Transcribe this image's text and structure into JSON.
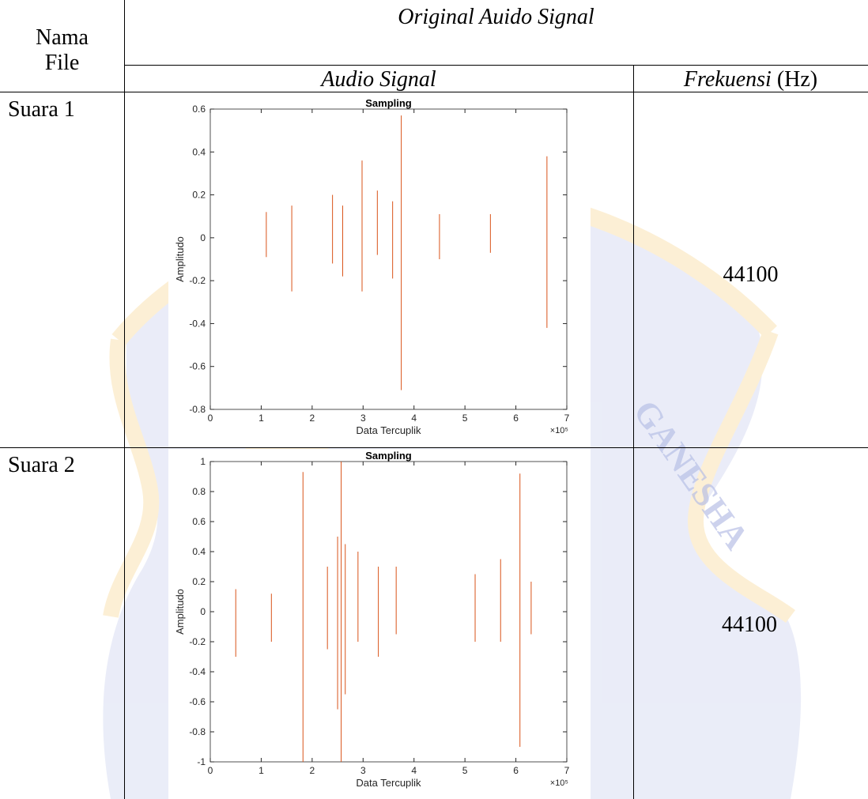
{
  "table": {
    "header": {
      "name_col": "Nama File",
      "group": "Original Auido Signal",
      "signal_col": "Audio Signal",
      "freq_col_italic": "Frekuensi",
      "freq_col_unit": "(Hz)"
    },
    "rows": [
      {
        "file": "Suara 1",
        "frequency": "44100"
      },
      {
        "file": "Suara 2",
        "frequency": "44100"
      }
    ]
  },
  "watermark": {
    "text": "GANESHA",
    "colors": {
      "blue": "#d9def3",
      "gold": "#fbe3b4"
    }
  },
  "chart_data": [
    {
      "type": "line",
      "title": "Sampling",
      "xlabel": "Data Tercuplik",
      "ylabel": "Amplitudo",
      "xlim": [
        0,
        7
      ],
      "ylim": [
        -0.8,
        0.6
      ],
      "x_multiplier": "×10⁵",
      "x_ticks": [
        "0",
        "1",
        "2",
        "3",
        "4",
        "5",
        "6",
        "7"
      ],
      "y_ticks": [
        "-0.8",
        "-0.6",
        "-0.4",
        "-0.2",
        "0",
        "0.2",
        "0.4",
        "0.6"
      ],
      "color": "#d95319",
      "series": [
        {
          "envelope": [
            [
              0,
              0,
              0
            ],
            [
              0.5,
              -0.01,
              0.01
            ],
            [
              0.8,
              -0.05,
              0.05
            ],
            [
              1.0,
              -0.1,
              0.1
            ],
            [
              1.5,
              -0.12,
              0.12
            ],
            [
              2.0,
              -0.13,
              0.13
            ],
            [
              2.5,
              -0.12,
              0.12
            ],
            [
              3.0,
              -0.08,
              0.08
            ],
            [
              3.2,
              -0.1,
              0.1
            ],
            [
              3.6,
              -0.12,
              0.12
            ],
            [
              3.8,
              -0.12,
              0.12
            ],
            [
              4.0,
              -0.1,
              0.1
            ],
            [
              4.5,
              -0.08,
              0.08
            ],
            [
              5.0,
              -0.08,
              0.08
            ],
            [
              5.5,
              -0.06,
              0.06
            ],
            [
              6.0,
              -0.04,
              0.04
            ],
            [
              6.3,
              -0.02,
              0.02
            ],
            [
              6.5,
              -0.05,
              0.05
            ],
            [
              6.6,
              -0.05,
              0.06
            ]
          ],
          "spikes": [
            [
              1.1,
              0.12,
              -0.09
            ],
            [
              1.6,
              0.15,
              -0.25
            ],
            [
              2.4,
              0.2,
              -0.12
            ],
            [
              2.6,
              0.15,
              -0.18
            ],
            [
              2.98,
              0.36,
              -0.25
            ],
            [
              3.28,
              0.22,
              -0.08
            ],
            [
              3.58,
              0.17,
              -0.19
            ],
            [
              3.75,
              0.57,
              -0.71
            ],
            [
              4.5,
              0.11,
              -0.1
            ],
            [
              5.5,
              0.11,
              -0.07
            ],
            [
              6.61,
              0.38,
              -0.42
            ]
          ]
        }
      ]
    },
    {
      "type": "line",
      "title": "Sampling",
      "xlabel": "Data Tercuplik",
      "ylabel": "Amplitudo",
      "xlim": [
        0,
        7
      ],
      "ylim": [
        -1,
        1
      ],
      "x_multiplier": "×10⁵",
      "x_ticks": [
        "0",
        "1",
        "2",
        "3",
        "4",
        "5",
        "6",
        "7"
      ],
      "y_ticks": [
        "-1",
        "-0.8",
        "-0.6",
        "-0.4",
        "-0.2",
        "0",
        "0.2",
        "0.4",
        "0.6",
        "0.8",
        "1"
      ],
      "color": "#d95319",
      "series": [
        {
          "envelope": [
            [
              0,
              -0.07,
              0.07
            ],
            [
              0.5,
              -0.08,
              0.08
            ],
            [
              1.0,
              -0.07,
              0.07
            ],
            [
              1.5,
              -0.06,
              0.06
            ],
            [
              2.0,
              -0.08,
              0.08
            ],
            [
              2.5,
              -0.1,
              0.1
            ],
            [
              3.0,
              -0.12,
              0.12
            ],
            [
              3.2,
              -0.08,
              0.08
            ],
            [
              3.6,
              -0.1,
              0.1
            ],
            [
              4.0,
              -0.05,
              0.05
            ],
            [
              4.1,
              -0.02,
              0.02
            ],
            [
              4.3,
              -0.02,
              0.02
            ],
            [
              4.5,
              -0.02,
              0.02
            ],
            [
              4.6,
              -0.06,
              0.06
            ],
            [
              5.0,
              -0.08,
              0.08
            ],
            [
              5.5,
              -0.1,
              0.1
            ],
            [
              6.0,
              -0.08,
              0.08
            ],
            [
              6.3,
              -0.06,
              0.06
            ],
            [
              6.6,
              -0.05,
              0.05
            ]
          ],
          "spikes": [
            [
              0.5,
              0.15,
              -0.3
            ],
            [
              1.2,
              0.12,
              -0.2
            ],
            [
              1.82,
              0.93,
              -1.0
            ],
            [
              2.3,
              0.3,
              -0.25
            ],
            [
              2.5,
              0.5,
              -0.65
            ],
            [
              2.57,
              1.0,
              -1.0
            ],
            [
              2.65,
              0.45,
              -0.55
            ],
            [
              2.9,
              0.4,
              -0.2
            ],
            [
              3.3,
              0.3,
              -0.3
            ],
            [
              3.65,
              0.3,
              -0.15
            ],
            [
              5.2,
              0.25,
              -0.2
            ],
            [
              5.7,
              0.35,
              -0.2
            ],
            [
              6.08,
              0.92,
              -0.9
            ],
            [
              6.3,
              0.2,
              -0.15
            ]
          ]
        }
      ]
    }
  ]
}
